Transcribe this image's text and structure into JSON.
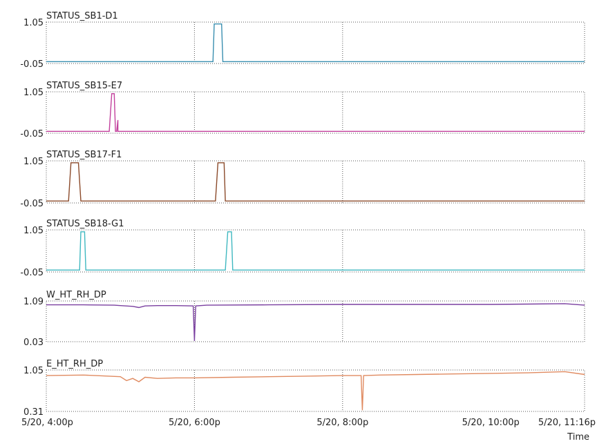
{
  "chart_data": {
    "type": "line",
    "xlabel": "Time",
    "x_ticks": [
      "5/20, 4:00p",
      "5/20, 6:00p",
      "5/20, 8:00p",
      "5/20, 10:00p",
      "5/20, 11:16p"
    ],
    "x_range": [
      "5/20, 4:00p",
      "5/20, 11:16p"
    ],
    "x_grid": [
      "5/20, 6:00p",
      "5/20, 8:00p"
    ],
    "panels": [
      {
        "name": "STATUS_SB1-D1",
        "ylim": [
          -0.05,
          1.05
        ],
        "y_ticks": [
          "1.05",
          "-0.05"
        ],
        "color": "#3a8fb0",
        "x": [
          "4:00p",
          "6:15p",
          "6:16p",
          "6:22p",
          "6:23p",
          "11:16p"
        ],
        "y": [
          0,
          0,
          1.0,
          1.0,
          0,
          0
        ]
      },
      {
        "name": "STATUS_SB15-E7",
        "ylim": [
          -0.05,
          1.05
        ],
        "y_ticks": [
          "1.05",
          "-0.05"
        ],
        "color": "#c2409c",
        "x": [
          "4:00p",
          "4:51p",
          "4:53p",
          "4:55p",
          "4:56p",
          "4:57p",
          "4:58p",
          "4:58p",
          "11:16p"
        ],
        "y": [
          0,
          0,
          1.0,
          1.0,
          0,
          0,
          0.3,
          0,
          0
        ]
      },
      {
        "name": "STATUS_SB17-F1",
        "ylim": [
          -0.05,
          1.05
        ],
        "y_ticks": [
          "1.05",
          "-0.05"
        ],
        "color": "#8b4a2a",
        "x": [
          "4:00p",
          "4:18p",
          "4:20p",
          "4:26p",
          "4:28p",
          "6:17p",
          "6:19p",
          "6:24p",
          "6:25p",
          "11:16p"
        ],
        "y": [
          0,
          0,
          1.0,
          1.0,
          0,
          0,
          1.0,
          1.0,
          0,
          0
        ]
      },
      {
        "name": "STATUS_SB18-G1",
        "ylim": [
          -0.05,
          1.05
        ],
        "y_ticks": [
          "1.05",
          "-0.05"
        ],
        "color": "#3fb8c0",
        "x": [
          "4:00p",
          "4:27p",
          "4:28p",
          "4:31p",
          "4:32p",
          "6:25p",
          "6:27p",
          "6:30p",
          "6:31p",
          "11:16p"
        ],
        "y": [
          0,
          0,
          1.0,
          1.0,
          0,
          0,
          1.0,
          1.0,
          0,
          0
        ]
      },
      {
        "name": "W_HT_RH_DP",
        "ylim": [
          0.03,
          1.09
        ],
        "y_ticks": [
          "1.09",
          "0.03"
        ],
        "color": "#7a3fa0",
        "x": [
          "4:00p",
          "4:30p",
          "4:55p",
          "5:00p",
          "5:10p",
          "5:15p",
          "5:20p",
          "5:30p",
          "5:45p",
          "5:59p",
          "6:00p",
          "6:01p",
          "6:10p",
          "7:00p",
          "8:00p",
          "9:00p",
          "10:00p",
          "10:30p",
          "11:00p",
          "11:16p"
        ],
        "y": [
          0.99,
          0.99,
          0.98,
          0.97,
          0.95,
          0.92,
          0.96,
          0.97,
          0.97,
          0.96,
          0.05,
          0.96,
          0.98,
          0.99,
          1.0,
          1.0,
          1.0,
          1.01,
          1.02,
          0.98
        ]
      },
      {
        "name": "E_HT_RH_DP",
        "ylim": [
          0.31,
          1.05
        ],
        "y_ticks": [
          "1.05",
          "0.31"
        ],
        "color": "#e08a60",
        "x": [
          "4:00p",
          "4:30p",
          "5:00p",
          "5:05p",
          "5:10p",
          "5:15p",
          "5:20p",
          "5:30p",
          "5:45p",
          "6:00p",
          "6:30p",
          "7:00p",
          "7:30p",
          "8:00p",
          "8:15p",
          "8:16p",
          "8:17p",
          "8:30p",
          "9:00p",
          "9:30p",
          "10:00p",
          "10:30p",
          "11:00p",
          "11:16p"
        ],
        "y": [
          0.95,
          0.96,
          0.93,
          0.86,
          0.9,
          0.84,
          0.92,
          0.9,
          0.91,
          0.91,
          0.92,
          0.93,
          0.94,
          0.95,
          0.95,
          0.33,
          0.95,
          0.96,
          0.97,
          0.98,
          0.99,
          1.0,
          1.02,
          0.97
        ]
      }
    ]
  }
}
